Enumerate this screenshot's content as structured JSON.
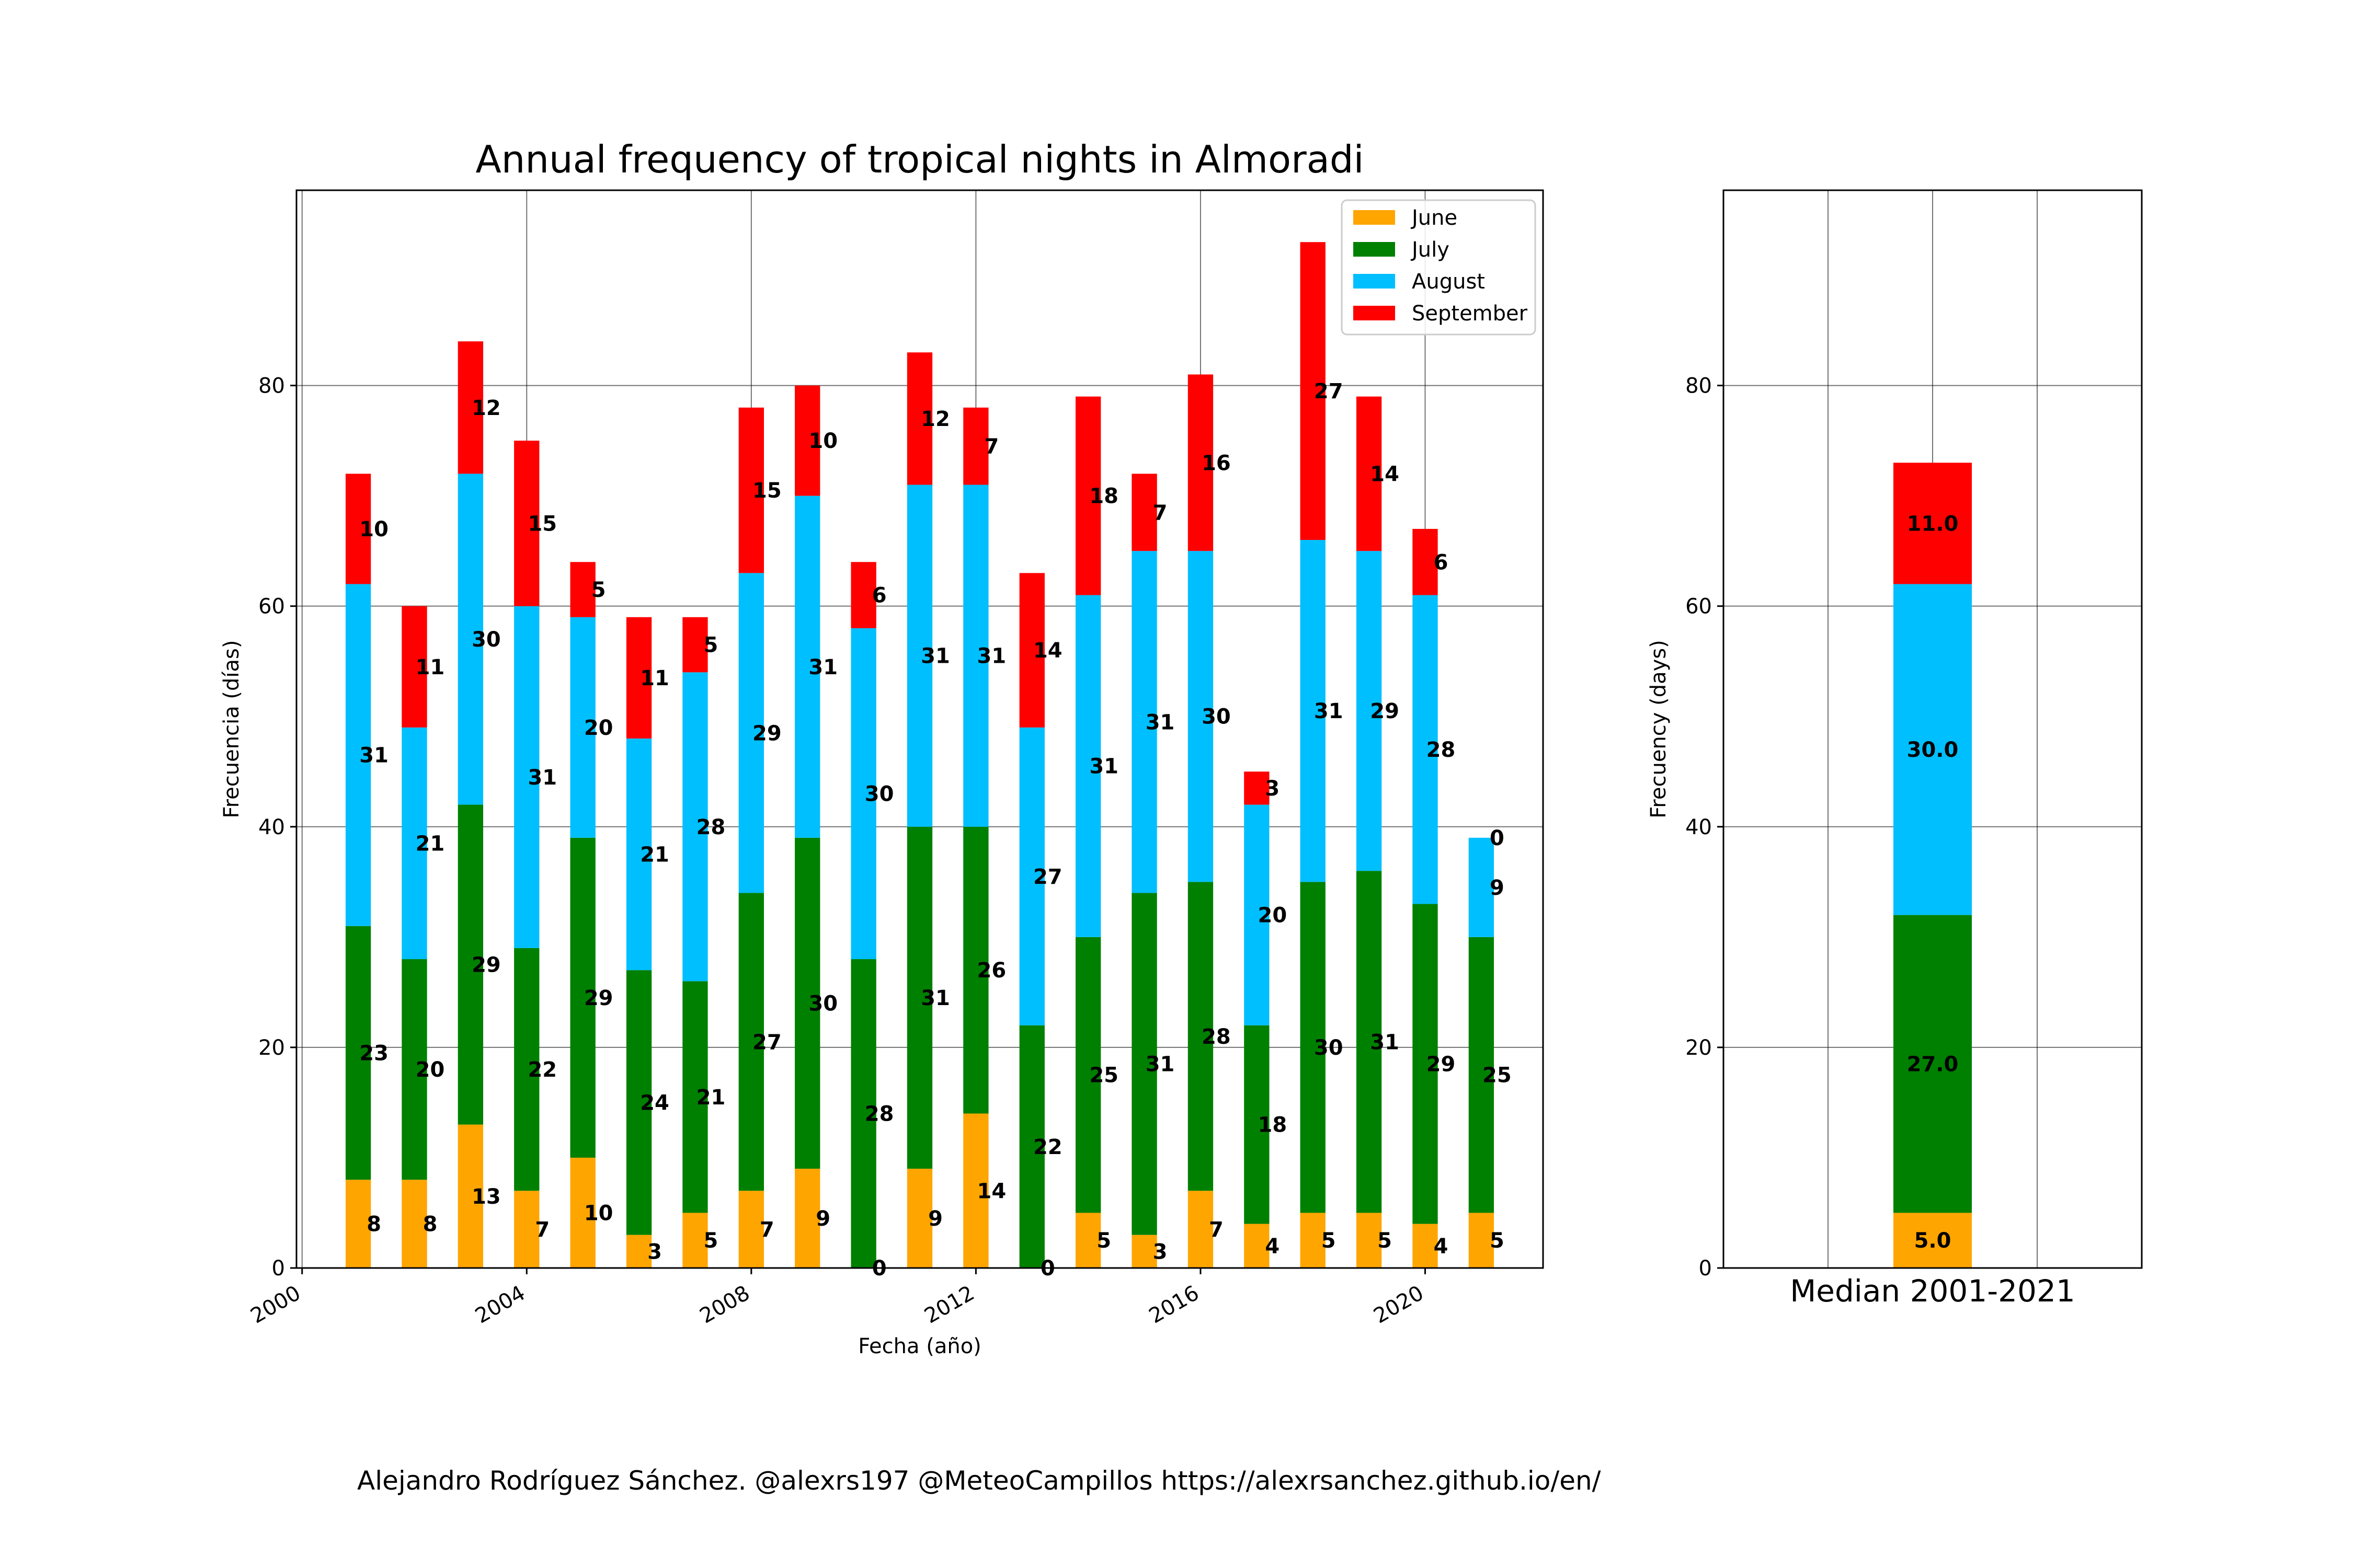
{
  "credit": "Alejandro Rodríguez Sánchez. @alexrs197 @MeteoCampillos   https://alexrsanchez.github.io/en/",
  "colors": {
    "June": "#FFA500",
    "July": "#008000",
    "August": "#00BFFF",
    "September": "#FF0000"
  },
  "chart_data": [
    {
      "type": "bar",
      "stacked": true,
      "title": "Annual frequency of tropical nights in Almoradi",
      "xlabel": "Fecha (año)",
      "ylabel": "Frecuencia (días)",
      "x": [
        2001,
        2002,
        2003,
        2004,
        2005,
        2006,
        2007,
        2008,
        2009,
        2010,
        2011,
        2012,
        2013,
        2014,
        2015,
        2016,
        2017,
        2018,
        2019,
        2020,
        2021
      ],
      "xticks": [
        "2000",
        "2004",
        "2008",
        "2012",
        "2016",
        "2020"
      ],
      "yticks": [
        "0",
        "20",
        "40",
        "60",
        "80"
      ],
      "xlim": [
        1999.9,
        2022.1
      ],
      "ylim": [
        0,
        97.7
      ],
      "grid": true,
      "legend": "top-right",
      "series": [
        {
          "name": "June",
          "values": [
            8,
            8,
            13,
            7,
            10,
            3,
            5,
            7,
            9,
            0,
            9,
            14,
            0,
            5,
            3,
            7,
            4,
            5,
            5,
            4,
            5
          ]
        },
        {
          "name": "July",
          "values": [
            23,
            20,
            29,
            22,
            29,
            24,
            21,
            27,
            30,
            28,
            31,
            26,
            22,
            25,
            31,
            28,
            18,
            30,
            31,
            29,
            25
          ]
        },
        {
          "name": "August",
          "values": [
            31,
            21,
            30,
            31,
            20,
            21,
            28,
            29,
            31,
            30,
            31,
            31,
            27,
            31,
            31,
            30,
            20,
            31,
            29,
            28,
            9
          ]
        },
        {
          "name": "September",
          "values": [
            10,
            11,
            12,
            15,
            5,
            11,
            5,
            15,
            10,
            6,
            12,
            7,
            14,
            18,
            7,
            16,
            3,
            27,
            14,
            6,
            0
          ]
        }
      ]
    },
    {
      "type": "bar",
      "stacked": true,
      "title": "",
      "xlabel": "Median 2001-2021",
      "ylabel": "Frecuency (days)",
      "yticks": [
        "0",
        "20",
        "40",
        "60",
        "80"
      ],
      "ylim": [
        0,
        97.7
      ],
      "grid": true,
      "series": [
        {
          "name": "June",
          "values": [
            5.0
          ],
          "labels": [
            "5.0"
          ]
        },
        {
          "name": "July",
          "values": [
            27.0
          ],
          "labels": [
            "27.0"
          ]
        },
        {
          "name": "August",
          "values": [
            30.0
          ],
          "labels": [
            "30.0"
          ]
        },
        {
          "name": "September",
          "values": [
            11.0
          ],
          "labels": [
            "11.0"
          ]
        }
      ]
    }
  ]
}
